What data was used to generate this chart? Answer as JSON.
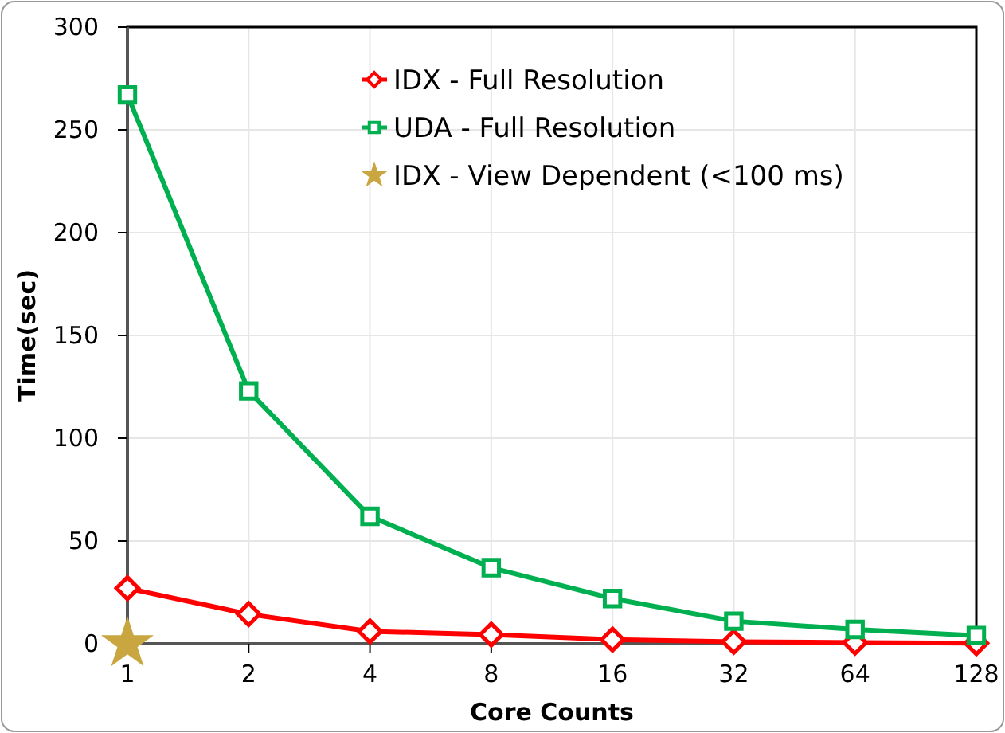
{
  "chart_data": {
    "type": "line",
    "xlabel": "Core Counts",
    "ylabel": "Time(sec)",
    "categories": [
      "1",
      "2",
      "4",
      "8",
      "16",
      "32",
      "64",
      "128"
    ],
    "series": [
      {
        "name": "IDX - Full Resolution",
        "color": "#ff0000",
        "marker": "diamond",
        "values": [
          27,
          14.4,
          6,
          4.5,
          2,
          1,
          0.6,
          0.3
        ]
      },
      {
        "name": "UDA - Full Resolution",
        "color": "#00b050",
        "marker": "square",
        "values": [
          267,
          123,
          62,
          37,
          22,
          11,
          7,
          4
        ]
      },
      {
        "name": "IDX - View Dependent (<100 ms)",
        "type": "scatter",
        "color": "#c9a640",
        "marker": "star",
        "values": [
          0,
          null,
          null,
          null,
          null,
          null,
          null,
          null
        ]
      }
    ],
    "ylim": [
      0,
      300
    ],
    "yticks": [
      0,
      50,
      100,
      150,
      200,
      250,
      300
    ],
    "grid": true,
    "legend": "top right"
  }
}
